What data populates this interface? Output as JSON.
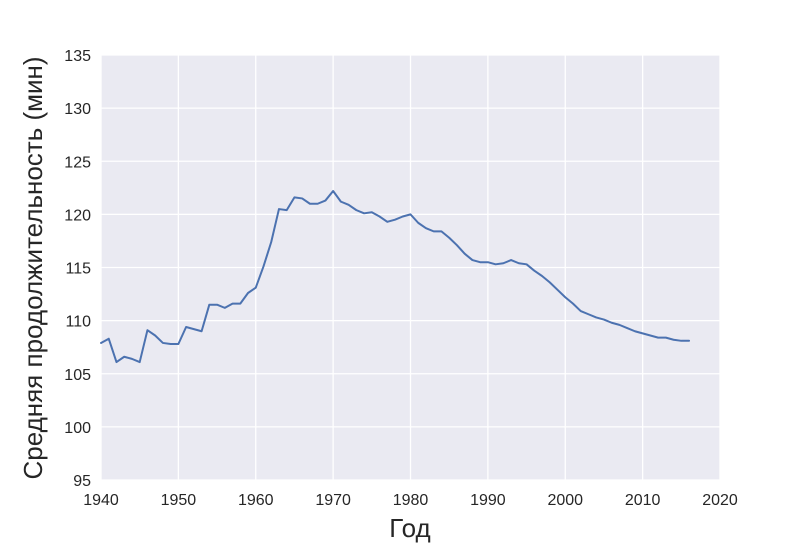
{
  "colors": {
    "plot_background": "#eaeaf2",
    "grid": "#ffffff",
    "series": "#4c72b0",
    "text": "#262626"
  },
  "chart_data": {
    "type": "line",
    "title": "",
    "xlabel": "Год",
    "ylabel": "Средняя продолжительность (мин)",
    "xlim": [
      1940,
      2020
    ],
    "ylim": [
      95,
      135
    ],
    "xticks": [
      "1940",
      "1950",
      "1960",
      "1970",
      "1980",
      "1990",
      "2000",
      "2010",
      "2020"
    ],
    "yticks": [
      "95",
      "100",
      "105",
      "110",
      "115",
      "120",
      "125",
      "130",
      "135"
    ],
    "grid": true,
    "legend": "none",
    "series": [
      {
        "x": [
          1940,
          1941,
          1942,
          1943,
          1944,
          1945,
          1946,
          1947,
          1948,
          1949,
          1950,
          1951,
          1952,
          1953,
          1954,
          1955,
          1956,
          1957,
          1958,
          1959,
          1960,
          1961,
          1962,
          1963,
          1964,
          1965,
          1966,
          1967,
          1968,
          1969,
          1970,
          1971,
          1972,
          1973,
          1974,
          1975,
          1976,
          1977,
          1978,
          1979,
          1980,
          1981,
          1982,
          1983,
          1984,
          1985,
          1986,
          1987,
          1988,
          1989,
          1990,
          1991,
          1992,
          1993,
          1994,
          1995,
          1996,
          1997,
          1998,
          1999,
          2000,
          2001,
          2002,
          2003,
          2004,
          2005,
          2006,
          2007,
          2008,
          2009,
          2010,
          2011,
          2012,
          2013,
          2014,
          2015,
          2016
        ],
        "y": [
          107.9,
          108.3,
          106.1,
          106.6,
          106.4,
          106.1,
          109.1,
          108.6,
          107.9,
          107.8,
          107.8,
          109.4,
          109.2,
          109.0,
          111.5,
          111.5,
          111.2,
          111.6,
          111.6,
          112.6,
          113.1,
          115.1,
          117.4,
          120.5,
          120.4,
          121.6,
          121.5,
          121.0,
          121.0,
          121.3,
          122.2,
          121.2,
          120.9,
          120.4,
          120.1,
          120.2,
          119.8,
          119.3,
          119.5,
          119.8,
          120.0,
          119.2,
          118.7,
          118.4,
          118.4,
          117.8,
          117.1,
          116.3,
          115.7,
          115.5,
          115.5,
          115.3,
          115.4,
          115.7,
          115.4,
          115.3,
          114.7,
          114.2,
          113.6,
          112.9,
          112.2,
          111.6,
          110.9,
          110.6,
          110.3,
          110.1,
          109.8,
          109.6,
          109.3,
          109.0,
          108.8,
          108.6,
          108.4,
          108.4,
          108.2,
          108.1,
          108.1
        ]
      }
    ]
  }
}
